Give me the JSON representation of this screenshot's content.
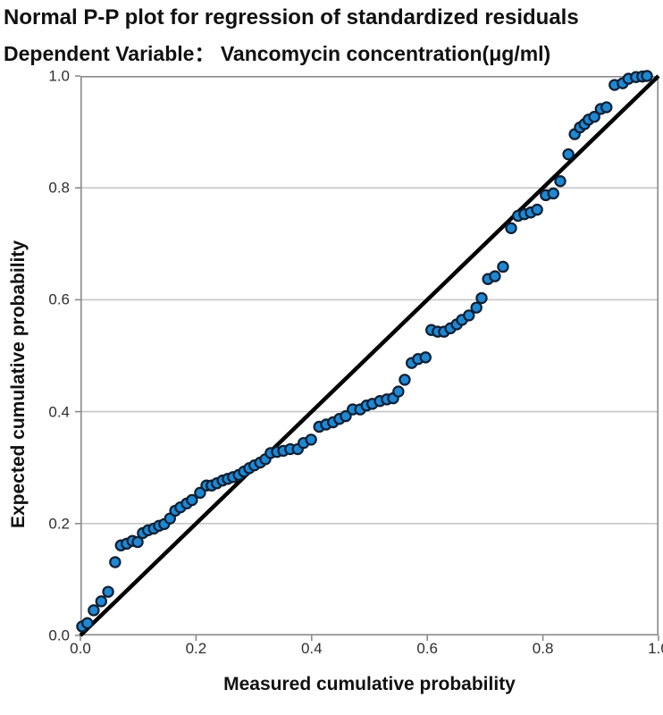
{
  "header": {
    "title": "Normal P-P plot for regression of standardized residuals",
    "subtitle": "Dependent Variable： Vancomycin concentration(μg/ml)"
  },
  "chart_data": {
    "type": "scatter",
    "title": "Normal P-P plot for regression of standardized residuals",
    "subtitle": "Dependent Variable： Vancomycin concentration(μg/ml)",
    "xlabel": "Measured cumulative probability",
    "ylabel": "Expected cumulative probability",
    "xlim": [
      0.0,
      1.0
    ],
    "ylim": [
      0.0,
      1.0
    ],
    "x_ticks": [
      0.0,
      0.2,
      0.4,
      0.6,
      0.8,
      1.0
    ],
    "y_ticks": [
      0.0,
      0.2,
      0.4,
      0.6,
      0.8,
      1.0
    ],
    "grid": "horizontal-only",
    "legend": "none",
    "colors": {
      "gridline": "#c6c6c6",
      "border": "#8a8a8a",
      "tick": "#8a8a8a",
      "background": "#ffffff"
    },
    "reference_line": {
      "from": [
        0.0,
        0.0
      ],
      "to": [
        1.0,
        1.0
      ],
      "color": "#000000",
      "width": 4.5
    },
    "marker": {
      "fill": "#1e88d3",
      "stroke": "#0d1f33",
      "radius": 5.6,
      "stroke_width": 2.2
    },
    "points": [
      [
        0.003,
        0.016
      ],
      [
        0.012,
        0.022
      ],
      [
        0.023,
        0.045
      ],
      [
        0.036,
        0.061
      ],
      [
        0.048,
        0.078
      ],
      [
        0.06,
        0.131
      ],
      [
        0.07,
        0.161
      ],
      [
        0.08,
        0.164
      ],
      [
        0.09,
        0.169
      ],
      [
        0.099,
        0.167
      ],
      [
        0.108,
        0.183
      ],
      [
        0.117,
        0.188
      ],
      [
        0.127,
        0.191
      ],
      [
        0.136,
        0.196
      ],
      [
        0.145,
        0.199
      ],
      [
        0.155,
        0.209
      ],
      [
        0.164,
        0.223
      ],
      [
        0.173,
        0.229
      ],
      [
        0.184,
        0.236
      ],
      [
        0.193,
        0.242
      ],
      [
        0.207,
        0.255
      ],
      [
        0.218,
        0.268
      ],
      [
        0.227,
        0.268
      ],
      [
        0.236,
        0.272
      ],
      [
        0.246,
        0.277
      ],
      [
        0.255,
        0.28
      ],
      [
        0.264,
        0.283
      ],
      [
        0.274,
        0.287
      ],
      [
        0.283,
        0.293
      ],
      [
        0.292,
        0.299
      ],
      [
        0.301,
        0.304
      ],
      [
        0.311,
        0.309
      ],
      [
        0.32,
        0.315
      ],
      [
        0.329,
        0.326
      ],
      [
        0.34,
        0.328
      ],
      [
        0.351,
        0.33
      ],
      [
        0.363,
        0.333
      ],
      [
        0.376,
        0.333
      ],
      [
        0.386,
        0.344
      ],
      [
        0.399,
        0.35
      ],
      [
        0.413,
        0.373
      ],
      [
        0.425,
        0.377
      ],
      [
        0.437,
        0.381
      ],
      [
        0.448,
        0.387
      ],
      [
        0.459,
        0.392
      ],
      [
        0.471,
        0.404
      ],
      [
        0.484,
        0.404
      ],
      [
        0.495,
        0.411
      ],
      [
        0.505,
        0.414
      ],
      [
        0.518,
        0.419
      ],
      [
        0.53,
        0.422
      ],
      [
        0.541,
        0.424
      ],
      [
        0.55,
        0.436
      ],
      [
        0.561,
        0.457
      ],
      [
        0.573,
        0.487
      ],
      [
        0.584,
        0.494
      ],
      [
        0.597,
        0.497
      ],
      [
        0.607,
        0.546
      ],
      [
        0.618,
        0.543
      ],
      [
        0.629,
        0.543
      ],
      [
        0.64,
        0.549
      ],
      [
        0.651,
        0.556
      ],
      [
        0.66,
        0.564
      ],
      [
        0.672,
        0.572
      ],
      [
        0.685,
        0.586
      ],
      [
        0.694,
        0.603
      ],
      [
        0.705,
        0.637
      ],
      [
        0.717,
        0.642
      ],
      [
        0.731,
        0.659
      ],
      [
        0.745,
        0.728
      ],
      [
        0.757,
        0.75
      ],
      [
        0.768,
        0.753
      ],
      [
        0.779,
        0.756
      ],
      [
        0.79,
        0.761
      ],
      [
        0.805,
        0.787
      ],
      [
        0.818,
        0.79
      ],
      [
        0.83,
        0.812
      ],
      [
        0.844,
        0.86
      ],
      [
        0.855,
        0.896
      ],
      [
        0.864,
        0.908
      ],
      [
        0.872,
        0.914
      ],
      [
        0.879,
        0.922
      ],
      [
        0.889,
        0.927
      ],
      [
        0.9,
        0.941
      ],
      [
        0.91,
        0.944
      ],
      [
        0.924,
        0.984
      ],
      [
        0.938,
        0.987
      ],
      [
        0.948,
        0.995
      ],
      [
        0.961,
        0.998
      ],
      [
        0.972,
        0.999
      ],
      [
        0.98,
        1.0
      ]
    ]
  }
}
